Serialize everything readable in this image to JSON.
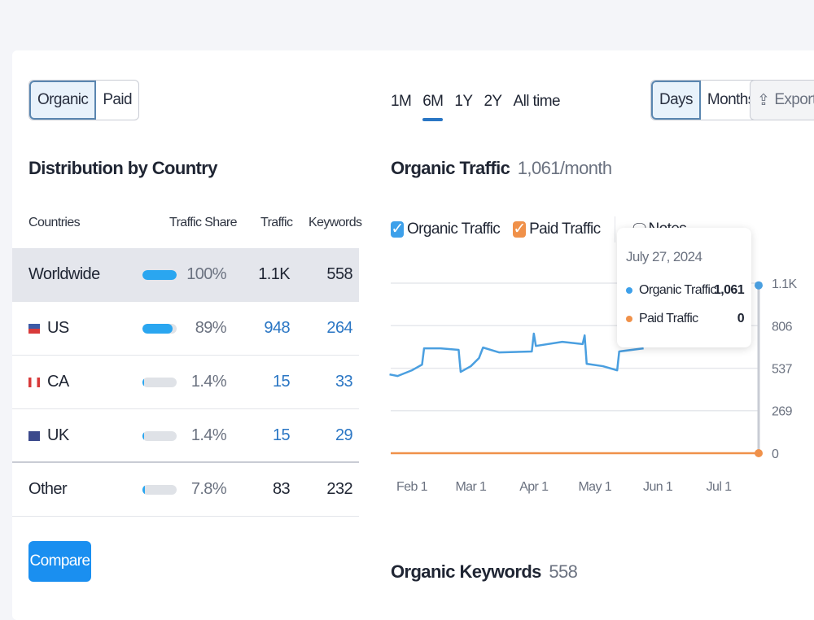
{
  "traffic_toggle": {
    "options": [
      "Organic",
      "Paid"
    ],
    "selected": "Organic"
  },
  "distribution": {
    "title": "Distribution by Country",
    "columns": [
      "Countries",
      "Traffic Share",
      "Traffic",
      "Keywords"
    ],
    "rows": [
      {
        "country": "Worldwide",
        "flag": "",
        "share": "100%",
        "share_value": 100,
        "traffic": "1.1K",
        "keywords": "558",
        "highlighted": true
      },
      {
        "country": "US",
        "flag": "us-flag-icon",
        "share": "89%",
        "share_value": 89,
        "traffic": "948",
        "keywords": "264"
      },
      {
        "country": "CA",
        "flag": "ca-flag-icon",
        "share": "1.4%",
        "share_value": 1.4,
        "traffic": "15",
        "keywords": "33"
      },
      {
        "country": "UK",
        "flag": "uk-flag-icon",
        "share": "1.4%",
        "share_value": 1.4,
        "traffic": "15",
        "keywords": "29"
      },
      {
        "country": "Other",
        "flag": "",
        "share": "7.8%",
        "share_value": 7.8,
        "traffic": "83",
        "keywords": "232"
      }
    ],
    "compare_label": "Compare"
  },
  "ranges": {
    "options": [
      "1M",
      "6M",
      "1Y",
      "2Y",
      "All time"
    ],
    "selected": "6M"
  },
  "granularity": {
    "options": [
      "Days",
      "Months"
    ],
    "selected": "Days"
  },
  "export_label": "Export",
  "traffic_header": {
    "title": "Organic Traffic",
    "value": "1,061/month"
  },
  "legend": {
    "organic": "Organic Traffic",
    "paid": "Paid Traffic",
    "notes": "Notes"
  },
  "tooltip": {
    "date": "July 27, 2024",
    "organic_label": "Organic Traffic",
    "organic_value": "1,061",
    "paid_label": "Paid Traffic",
    "paid_value": "0"
  },
  "keywords_header": {
    "title": "Organic Keywords",
    "value": "558"
  },
  "colors": {
    "organic": "#4a9fe0",
    "paid": "#f0914a",
    "accent": "#1a8ff0"
  },
  "chart_data": {
    "type": "line",
    "x_ticks": [
      "Feb 1",
      "Mar 1",
      "Apr 1",
      "May 1",
      "Jun 1",
      "Jul 1"
    ],
    "y_ticks": [
      "0",
      "269",
      "537",
      "806",
      "1.1K"
    ],
    "ylim": [
      0,
      1075
    ],
    "grid": true,
    "series": [
      {
        "name": "Organic Traffic",
        "color": "#4a9fe0",
        "points": [
          [
            "2024-01-21",
            498
          ],
          [
            "2024-01-25",
            488
          ],
          [
            "2024-02-01",
            524
          ],
          [
            "2024-02-06",
            560
          ],
          [
            "2024-02-07",
            663
          ],
          [
            "2024-02-15",
            663
          ],
          [
            "2024-02-24",
            653
          ],
          [
            "2024-02-25",
            514
          ],
          [
            "2024-03-01",
            550
          ],
          [
            "2024-03-05",
            601
          ],
          [
            "2024-03-07",
            668
          ],
          [
            "2024-03-15",
            637
          ],
          [
            "2024-03-31",
            643
          ],
          [
            "2024-04-01",
            756
          ],
          [
            "2024-04-02",
            678
          ],
          [
            "2024-04-15",
            704
          ],
          [
            "2024-04-25",
            690
          ],
          [
            "2024-04-26",
            745
          ],
          [
            "2024-04-27",
            565
          ],
          [
            "2024-05-05",
            550
          ],
          [
            "2024-05-12",
            524
          ],
          [
            "2024-05-13",
            643
          ],
          [
            "2024-05-25",
            663
          ]
        ]
      },
      {
        "name": "Paid Traffic",
        "color": "#f0914a",
        "points": [
          [
            "2024-01-21",
            0
          ],
          [
            "2024-07-27",
            0
          ]
        ]
      }
    ],
    "highlight": {
      "date": "2024-07-27",
      "organic": 1061,
      "paid": 0
    }
  }
}
